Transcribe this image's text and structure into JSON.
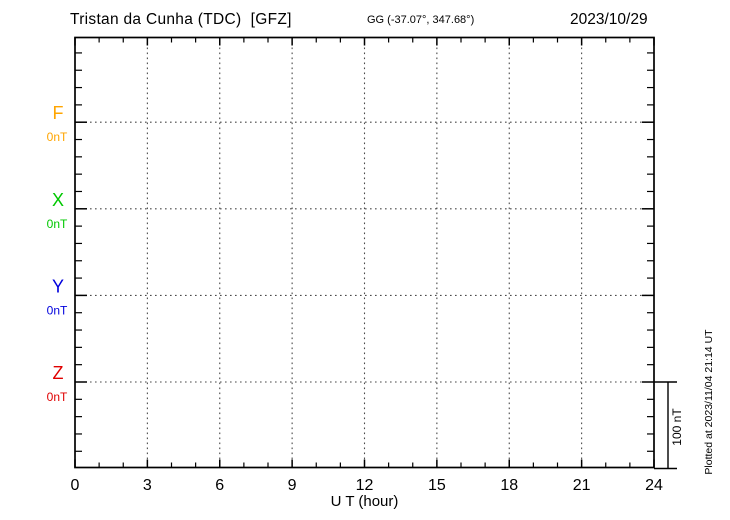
{
  "header": {
    "station_title": "Tristan da Cunha (TDC)  [GFZ]",
    "coords": "GG (-37.07°, 347.68°)",
    "date": "2023/10/29"
  },
  "chart_data": {
    "type": "line",
    "title": "Tristan da Cunha (TDC)  [GFZ]",
    "subtitle": "GG (-37.07°, 347.68°)",
    "date": "2023/10/29",
    "xlabel": "U T (hour)",
    "xlim": [
      0,
      24
    ],
    "x_major_ticks": [
      0,
      3,
      6,
      9,
      12,
      15,
      18,
      21,
      24
    ],
    "x_minor_tick_step_hours": 1,
    "grid": "dotted",
    "series": [
      {
        "name": "F",
        "baseline_label": "0nT",
        "color": "#FFA500",
        "x": [],
        "values": []
      },
      {
        "name": "X",
        "baseline_label": "0nT",
        "color": "#00C800",
        "x": [],
        "values": []
      },
      {
        "name": "Y",
        "baseline_label": "0nT",
        "color": "#0000DD",
        "x": [],
        "values": []
      },
      {
        "name": "Z",
        "baseline_label": "0nT",
        "color": "#E00000",
        "x": [],
        "values": []
      }
    ],
    "y_minor_ticks_per_division": 5,
    "scale_bar": {
      "label": "100 nT"
    },
    "plotted_at_note": "Plotted at 2023/11/04 21:14 UT"
  }
}
